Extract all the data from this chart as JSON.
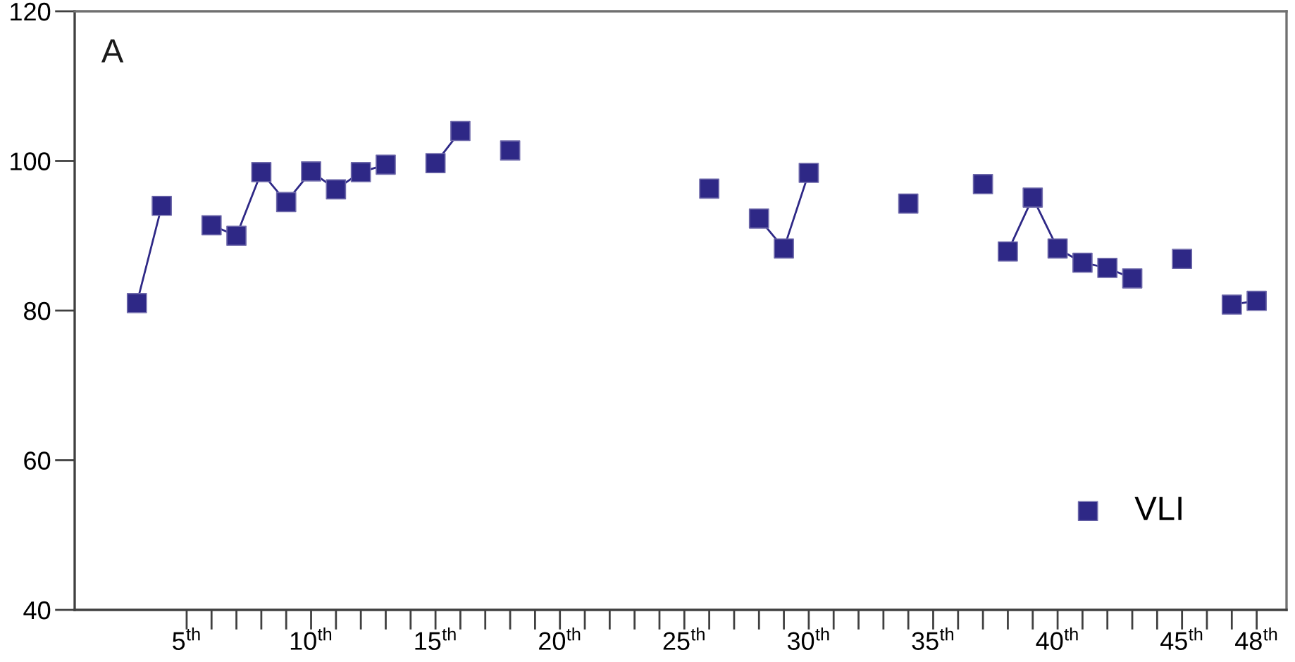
{
  "chart_data": {
    "type": "scatter",
    "title": "A",
    "marker": "square",
    "legend": "bottom right",
    "xlim": [
      0.5,
      49.2
    ],
    "ylim": [
      40,
      120
    ],
    "yticks": [
      40,
      60,
      80,
      100,
      120
    ],
    "xticks": [
      {
        "value": 5,
        "label": "5$^{th}$"
      },
      {
        "value": 6,
        "label": null
      },
      {
        "value": 7,
        "label": null
      },
      {
        "value": 8,
        "label": null
      },
      {
        "value": 9,
        "label": null
      },
      {
        "value": 10,
        "label": "10$^{th}$"
      },
      {
        "value": 11,
        "label": null
      },
      {
        "value": 12,
        "label": null
      },
      {
        "value": 13,
        "label": null
      },
      {
        "value": 14,
        "label": null
      },
      {
        "value": 15,
        "label": "15$^{th}$"
      },
      {
        "value": 16,
        "label": null
      },
      {
        "value": 17,
        "label": null
      },
      {
        "value": 18,
        "label": null
      },
      {
        "value": 19,
        "label": null
      },
      {
        "value": 20,
        "label": "20$^{th}$"
      },
      {
        "value": 21,
        "label": null
      },
      {
        "value": 22,
        "label": null
      },
      {
        "value": 23,
        "label": null
      },
      {
        "value": 24,
        "label": null
      },
      {
        "value": 25,
        "label": "25$^{th}$"
      },
      {
        "value": 26,
        "label": null
      },
      {
        "value": 27,
        "label": null
      },
      {
        "value": 28,
        "label": null
      },
      {
        "value": 29,
        "label": null
      },
      {
        "value": 30,
        "label": "30$^{th}$"
      },
      {
        "value": 31,
        "label": null
      },
      {
        "value": 32,
        "label": null
      },
      {
        "value": 33,
        "label": null
      },
      {
        "value": 34,
        "label": null
      },
      {
        "value": 35,
        "label": "35$^{th}$"
      },
      {
        "value": 36,
        "label": null
      },
      {
        "value": 37,
        "label": null
      },
      {
        "value": 38,
        "label": null
      },
      {
        "value": 39,
        "label": null
      },
      {
        "value": 40,
        "label": "40$^{th}$"
      },
      {
        "value": 41,
        "label": null
      },
      {
        "value": 42,
        "label": null
      },
      {
        "value": 43,
        "label": null
      },
      {
        "value": 44,
        "label": null
      },
      {
        "value": 45,
        "label": "45$^{th}$"
      },
      {
        "value": 46,
        "label": null
      },
      {
        "value": 47,
        "label": null
      },
      {
        "value": 48,
        "label": "48$^{th}$"
      }
    ],
    "series": [
      {
        "name": "VLI",
        "color": "#2e2886",
        "x": [
          3,
          4,
          6,
          7,
          8,
          9,
          10,
          11,
          12,
          13,
          15,
          16,
          18,
          26,
          28,
          29,
          30,
          34,
          37,
          38,
          39,
          40,
          41,
          42,
          43,
          45,
          47,
          48
        ],
        "values": [
          81,
          94,
          91.4,
          90,
          98.5,
          94.5,
          98.6,
          96.2,
          98.5,
          99.5,
          99.7,
          104,
          101.4,
          96.3,
          92.3,
          88.3,
          98.4,
          94.3,
          96.9,
          87.9,
          95.1,
          88.3,
          86.4,
          85.7,
          84.3,
          86.9,
          80.8,
          81.3
        ]
      },
      {
        "type": "line",
        "marker": "none",
        "line_style": "solid",
        "color": "#2e2886",
        "x": [
          3,
          4,
          5,
          6,
          7,
          8,
          9,
          10,
          11,
          12,
          13,
          14,
          15,
          16,
          17,
          18,
          19,
          20,
          21,
          22,
          23,
          24,
          25,
          26,
          27,
          28,
          29,
          30,
          31,
          32,
          33,
          34,
          35,
          36,
          37,
          38,
          39,
          40,
          41,
          42,
          43,
          44,
          45,
          46,
          47,
          48
        ],
        "values": [
          81,
          94,
          null,
          91.4,
          90,
          98.5,
          94.5,
          98.6,
          96.2,
          98.5,
          99.5,
          null,
          99.7,
          104,
          null,
          null,
          null,
          null,
          null,
          null,
          null,
          null,
          null,
          null,
          null,
          92.3,
          88.3,
          98.4,
          null,
          null,
          null,
          null,
          null,
          null,
          null,
          87.9,
          95.1,
          88.3,
          86.4,
          85.7,
          84.3,
          null,
          null,
          null,
          80.8,
          81.3
        ]
      }
    ]
  }
}
